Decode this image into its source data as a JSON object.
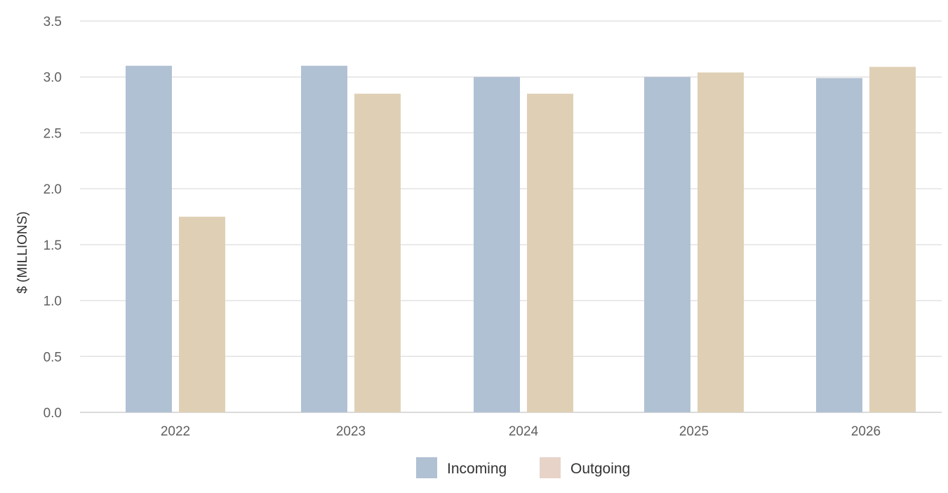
{
  "chart_data": {
    "type": "bar",
    "title": "",
    "xlabel": "",
    "ylabel": "$ (MILLIONS)",
    "categories": [
      "2022",
      "2023",
      "2024",
      "2025",
      "2026"
    ],
    "series": [
      {
        "name": "Incoming",
        "color": "#b1c1d4",
        "values": [
          3.1,
          3.1,
          3.0,
          3.0,
          2.99
        ]
      },
      {
        "name": "Outgoing",
        "color": "#dfd0b5",
        "values": [
          1.75,
          2.85,
          2.85,
          3.04,
          3.09
        ]
      }
    ],
    "ylim": [
      0,
      3.5
    ],
    "yticks": [
      "0.0",
      "0.5",
      "1.0",
      "1.5",
      "2.0",
      "2.5",
      "3.0",
      "3.5"
    ],
    "grid": true,
    "legend_position": "bottom-center",
    "legend": [
      {
        "name": "Incoming",
        "swatch_color": "#b1c1d4"
      },
      {
        "name": "Outgoing",
        "swatch_color": "#e8d3c9"
      }
    ]
  }
}
